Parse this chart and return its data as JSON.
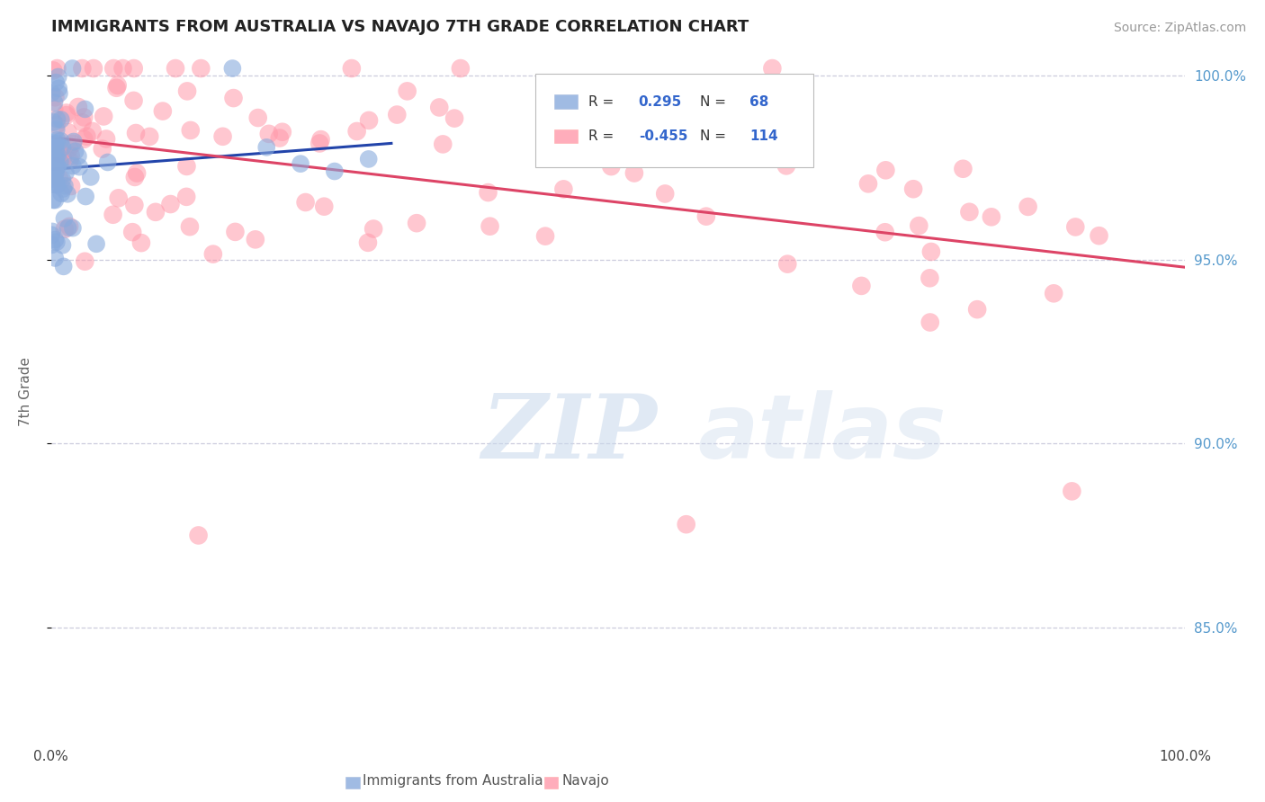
{
  "title": "IMMIGRANTS FROM AUSTRALIA VS NAVAJO 7TH GRADE CORRELATION CHART",
  "source": "Source: ZipAtlas.com",
  "xlabel_blue": "Immigrants from Australia",
  "xlabel_pink": "Navajo",
  "ylabel": "7th Grade",
  "watermark_zip": "ZIP",
  "watermark_atlas": "atlas",
  "R_blue": 0.295,
  "N_blue": 68,
  "R_pink": -0.455,
  "N_pink": 114,
  "xmin": 0.0,
  "xmax": 1.0,
  "ymin": 0.82,
  "ymax": 1.008,
  "yticks": [
    0.85,
    0.9,
    0.95,
    1.0
  ],
  "ytick_labels": [
    "85.0%",
    "90.0%",
    "95.0%",
    "100.0%"
  ],
  "color_blue": "#88AADD",
  "color_pink": "#FF99AA",
  "line_blue": "#2244AA",
  "line_pink": "#DD4466",
  "background": "#FFFFFF",
  "grid_color": "#CCCCDD"
}
